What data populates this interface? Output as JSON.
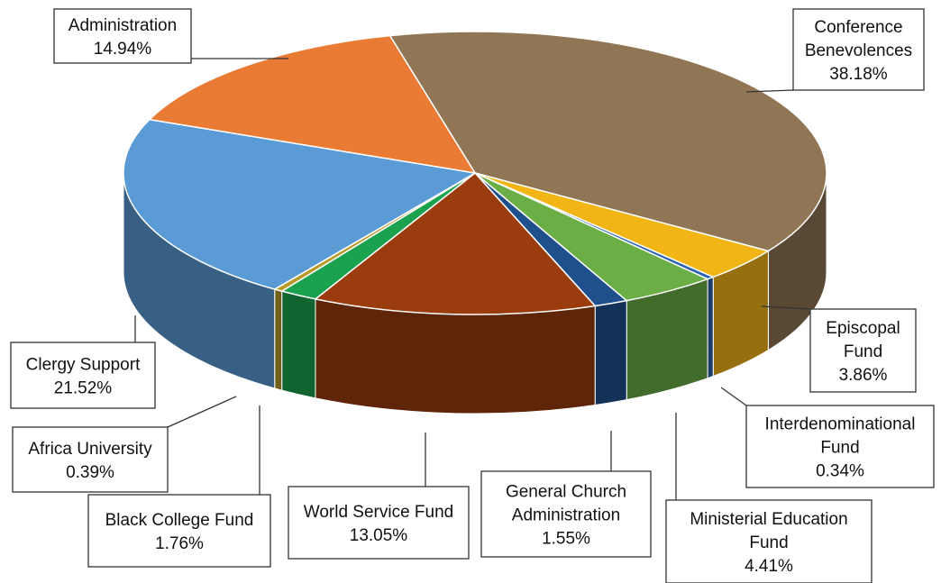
{
  "chart_data": {
    "type": "pie",
    "style": "3d",
    "title": "",
    "slices": [
      {
        "name": "Conference Benevolences",
        "label_lines": [
          "Conference",
          "Benevolences",
          "38.18%"
        ],
        "value": 38.18,
        "color": "#907654"
      },
      {
        "name": "Episcopal Fund",
        "label_lines": [
          "Episcopal",
          "Fund",
          "3.86%"
        ],
        "value": 3.86,
        "color": "#f2b516"
      },
      {
        "name": "Interdenominational Fund",
        "label_lines": [
          "Interdenominational",
          "Fund",
          "0.34%"
        ],
        "value": 0.34,
        "color": "#2a62ad"
      },
      {
        "name": "Ministerial Education Fund",
        "label_lines": [
          "Ministerial Education",
          "Fund",
          "4.41%"
        ],
        "value": 4.41,
        "color": "#6aae45"
      },
      {
        "name": "General Church Administration",
        "label_lines": [
          "General Church",
          "Administration",
          "1.55%"
        ],
        "value": 1.55,
        "color": "#20508c"
      },
      {
        "name": "World Service Fund",
        "label_lines": [
          "World Service Fund",
          "13.05%"
        ],
        "value": 13.05,
        "color": "#9a3c0e"
      },
      {
        "name": "Black College Fund",
        "label_lines": [
          "Black College Fund",
          "1.76%"
        ],
        "value": 1.76,
        "color": "#1aa24e"
      },
      {
        "name": "Africa University",
        "label_lines": [
          "Africa University",
          "0.39%"
        ],
        "value": 0.39,
        "color": "#b79a2a"
      },
      {
        "name": "Clergy Support",
        "label_lines": [
          "Clergy Support",
          "21.52%"
        ],
        "value": 21.52,
        "color": "#5b9bd5"
      },
      {
        "name": "Administration",
        "label_lines": [
          "Administration",
          "14.94%"
        ],
        "value": 14.94,
        "color": "#ea7b34"
      }
    ]
  }
}
